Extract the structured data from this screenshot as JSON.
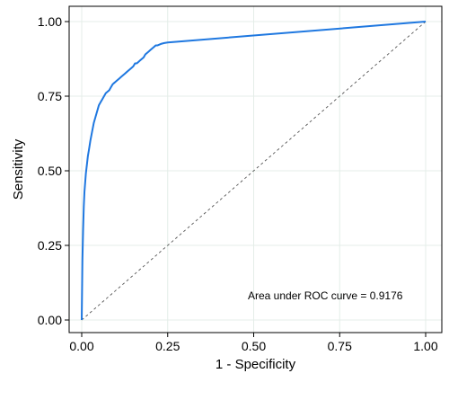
{
  "chart_data": {
    "type": "line",
    "title": "",
    "xlabel": "1 - Specificity",
    "ylabel": "Sensitivity",
    "xlim": [
      0,
      1
    ],
    "ylim": [
      0,
      1
    ],
    "x_ticks": [
      "0.00",
      "0.25",
      "0.50",
      "0.75",
      "1.00"
    ],
    "y_ticks": [
      "0.00",
      "0.25",
      "0.50",
      "0.75",
      "1.00"
    ],
    "grid": true,
    "annotation": "Area under ROC curve = 0.9176",
    "colors": {
      "curve": "#1f78e0",
      "reference": "#555555",
      "grid": "#e4ede8"
    },
    "series": [
      {
        "type": "roc",
        "x": [
          0,
          0.002,
          0.004,
          0.006,
          0.008,
          0.01,
          0.012,
          0.015,
          0.018,
          0.021,
          0.025,
          0.03,
          0.035,
          0.04,
          0.045,
          0.05,
          0.055,
          0.06,
          0.065,
          0.07,
          0.075,
          0.08,
          0.085,
          0.09,
          0.095,
          0.1,
          0.105,
          0.11,
          0.115,
          0.12,
          0.125,
          0.13,
          0.135,
          0.14,
          0.145,
          0.15,
          0.155,
          0.16,
          0.165,
          0.17,
          0.175,
          0.18,
          0.185,
          0.19,
          0.195,
          0.2,
          0.205,
          0.21,
          0.215,
          0.22,
          0.23,
          0.24,
          0.25,
          1.0
        ],
        "y": [
          0,
          0.2,
          0.3,
          0.38,
          0.43,
          0.46,
          0.49,
          0.52,
          0.55,
          0.57,
          0.6,
          0.63,
          0.66,
          0.68,
          0.7,
          0.72,
          0.73,
          0.74,
          0.75,
          0.76,
          0.765,
          0.77,
          0.78,
          0.79,
          0.795,
          0.8,
          0.805,
          0.81,
          0.815,
          0.82,
          0.825,
          0.83,
          0.835,
          0.84,
          0.845,
          0.85,
          0.86,
          0.86,
          0.865,
          0.87,
          0.875,
          0.88,
          0.89,
          0.895,
          0.9,
          0.905,
          0.91,
          0.915,
          0.92,
          0.92,
          0.925,
          0.928,
          0.93,
          1.0
        ]
      },
      {
        "type": "reference",
        "x": [
          0,
          1
        ],
        "y": [
          0,
          1
        ]
      }
    ]
  }
}
